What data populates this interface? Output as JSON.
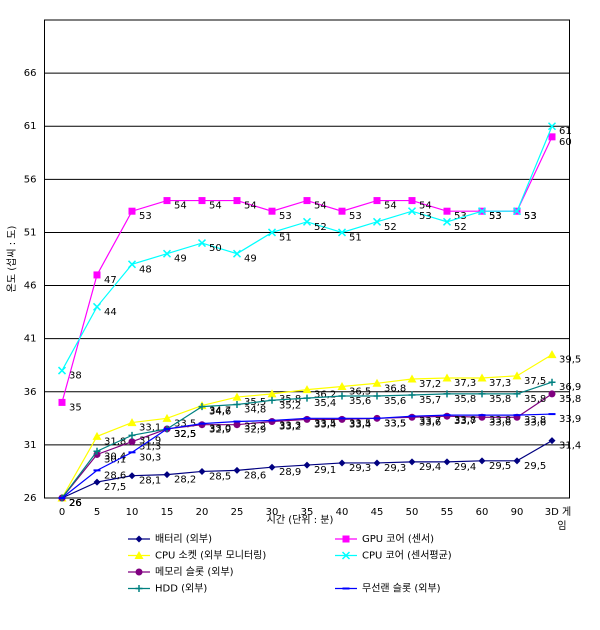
{
  "chart_data": {
    "type": "line",
    "x_label": "시간 (단위 : 분)",
    "y_label": "온도 (섭씨 : 도)",
    "categories": [
      "0",
      "5",
      "10",
      "15",
      "20",
      "25",
      "30",
      "35",
      "40",
      "45",
      "50",
      "55",
      "60",
      "90",
      "3D 게임"
    ],
    "ylim": [
      26,
      71
    ],
    "yticks": [
      26,
      31,
      36,
      41,
      46,
      51,
      56,
      61,
      66
    ],
    "grid": true,
    "series": [
      {
        "name": "배터리 (외부)",
        "color": "#000080",
        "marker": "diamond",
        "values": [
          26,
          27.5,
          28.1,
          28.2,
          28.5,
          28.6,
          28.9,
          29.1,
          29.3,
          29.3,
          29.4,
          29.4,
          29.5,
          29.5,
          31.4
        ],
        "value_labels": [
          "26",
          "27,5",
          "28,1",
          "28,2",
          "28,5",
          "28,6",
          "28,9",
          "29,1",
          "29,3",
          "29,3",
          "29,4",
          "29,4",
          "29,5",
          "29,5",
          "31,4"
        ]
      },
      {
        "name": "GPU 코어 (센서)",
        "color": "#ff00ff",
        "marker": "square",
        "values": [
          35,
          47,
          53,
          54,
          54,
          54,
          53,
          54,
          53,
          54,
          54,
          53,
          53,
          53,
          60
        ]
      },
      {
        "name": "CPU 소켓 (외부 모니터링)",
        "color": "#ffff00",
        "marker": "triangle",
        "values": [
          26,
          31.8,
          33.1,
          33.5,
          34.7,
          35.5,
          35.8,
          36.2,
          36.5,
          36.8,
          37.2,
          37.3,
          37.3,
          37.5,
          39.5
        ],
        "value_labels": [
          "26",
          "31,8",
          "33,1",
          "33,5",
          "34,7",
          "35,5",
          "35,8",
          "36,2",
          "36,5",
          "36,8",
          "37,2",
          "37,3",
          "37,3",
          "37,5",
          "39,5"
        ]
      },
      {
        "name": "CPU 코어 (센서평균)",
        "color": "#00ffff",
        "marker": "x",
        "values": [
          38,
          44,
          48,
          49,
          50,
          49,
          51,
          52,
          51,
          52,
          53,
          52,
          53,
          53,
          61
        ]
      },
      {
        "name": "메모리 슬롯 (외부)",
        "color": "#800080",
        "marker": "circle",
        "values": [
          26,
          30.1,
          31.3,
          32.5,
          32.9,
          32.9,
          33.2,
          33.4,
          33.4,
          33.5,
          33.6,
          33.7,
          33.6,
          33.6,
          35.8
        ],
        "value_labels": [
          "26",
          "30,1",
          "31,3",
          "32,5",
          "32,9",
          "32,9",
          "33,2",
          "33,4",
          "33,4",
          "33,5",
          "33,6",
          "33,7",
          "33,6",
          "33,6",
          "35,8"
        ]
      },
      {
        "name": "HDD (외부)",
        "color": "#008080",
        "marker": "plus",
        "values": [
          26,
          30.4,
          31.9,
          32.5,
          34.6,
          34.8,
          35.2,
          35.4,
          35.6,
          35.6,
          35.7,
          35.8,
          35.8,
          35.8,
          36.9
        ],
        "value_labels": [
          "26",
          "30,4",
          "31,9",
          "32,5",
          "34,6",
          "34,8",
          "35,2",
          "35,4",
          "35,6",
          "35,6",
          "35,7",
          "35,8",
          "35,8",
          "35,8",
          "36,9"
        ]
      },
      {
        "name": "무선랜 슬롯 (외부)",
        "color": "#0000ff",
        "marker": "dash",
        "values": [
          26,
          28.6,
          30.3,
          32.5,
          33.0,
          33.2,
          33.3,
          33.5,
          33.5,
          33.5,
          33.7,
          33.8,
          33.8,
          33.8,
          33.9
        ],
        "value_labels": [
          "26",
          "28,6",
          "30,3",
          "32,5",
          "33,0",
          "33,2",
          "33,3",
          "33,5",
          "33,5",
          "33,5",
          "33,7",
          "33,8",
          "33,8",
          "33,8",
          "33,9"
        ]
      }
    ]
  }
}
